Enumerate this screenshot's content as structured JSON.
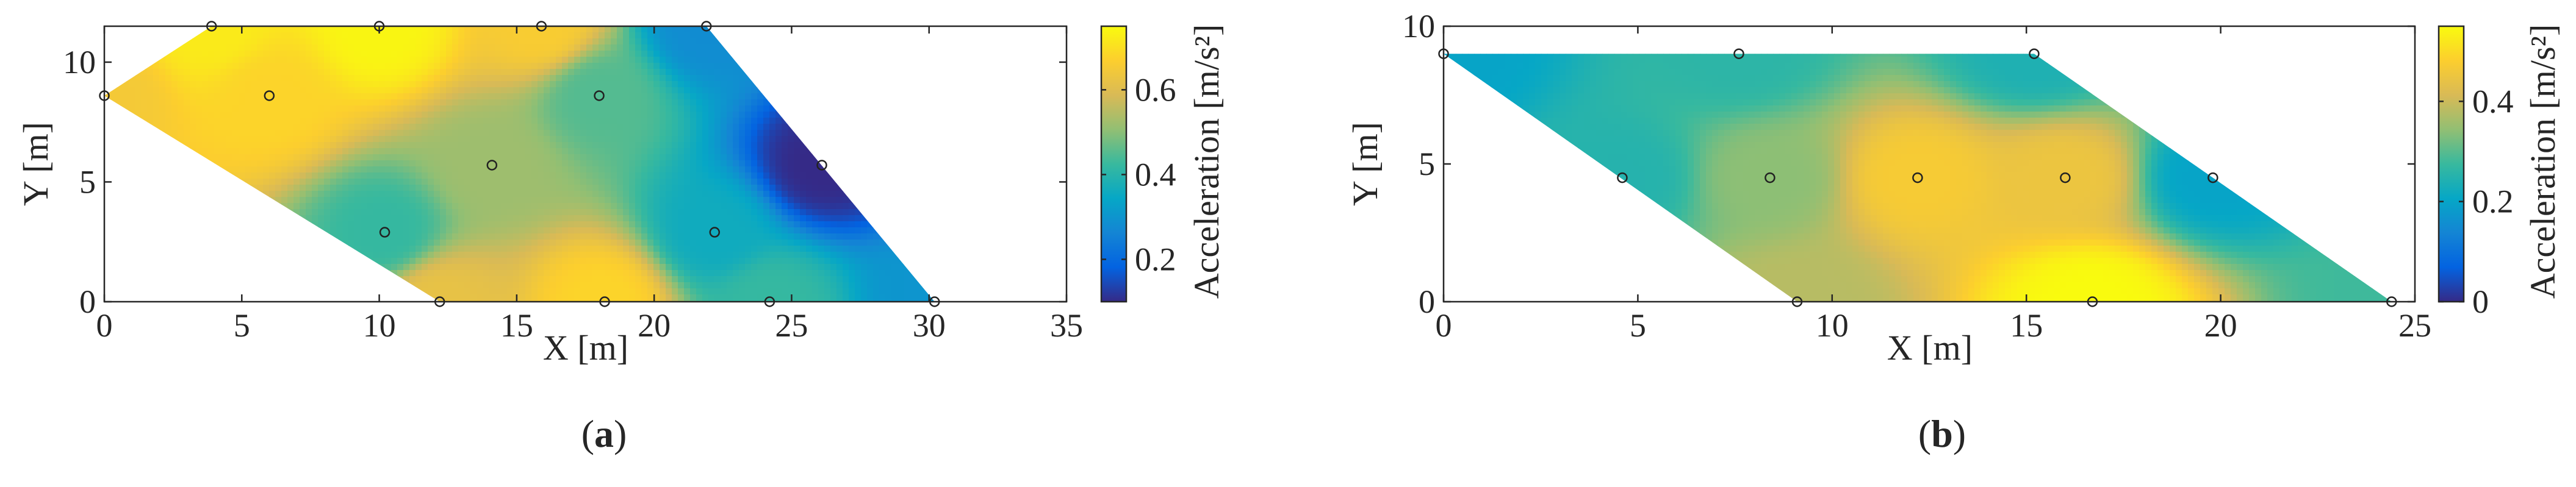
{
  "chart_data": [
    {
      "type": "heatmap",
      "panel_label": "a",
      "xlabel": "X [m]",
      "ylabel": "Y [m]",
      "colorbar_label": "Acceleration [m/s²]",
      "xlim": [
        0,
        35
      ],
      "ylim": [
        0,
        11.5
      ],
      "xticks": [
        0,
        5,
        10,
        15,
        20,
        25,
        30,
        35
      ],
      "yticks": [
        0,
        5,
        10
      ],
      "clim": [
        0.1,
        0.75
      ],
      "cticks": [
        0.2,
        0.4,
        0.6
      ],
      "colormap": "parula",
      "domain_polygon": [
        [
          0,
          8.6
        ],
        [
          3.9,
          11.5
        ],
        [
          21.9,
          11.5
        ],
        [
          30.2,
          0
        ],
        [
          12.2,
          0
        ]
      ],
      "sensors": [
        {
          "x": 3.9,
          "y": 11.5,
          "v": 0.72
        },
        {
          "x": 10.0,
          "y": 11.5,
          "v": 0.74
        },
        {
          "x": 15.9,
          "y": 11.5,
          "v": 0.66
        },
        {
          "x": 21.9,
          "y": 11.5,
          "v": 0.28
        },
        {
          "x": 0,
          "y": 8.6,
          "v": 0.65
        },
        {
          "x": 6.0,
          "y": 8.6,
          "v": 0.68
        },
        {
          "x": 18.0,
          "y": 8.6,
          "v": 0.45
        },
        {
          "x": 14.1,
          "y": 5.7,
          "v": 0.52
        },
        {
          "x": 26.1,
          "y": 5.7,
          "v": 0.1
        },
        {
          "x": 10.2,
          "y": 2.9,
          "v": 0.42
        },
        {
          "x": 22.2,
          "y": 2.9,
          "v": 0.36
        },
        {
          "x": 12.2,
          "y": 0,
          "v": 0.62
        },
        {
          "x": 18.2,
          "y": 0,
          "v": 0.68
        },
        {
          "x": 24.2,
          "y": 0,
          "v": 0.42
        },
        {
          "x": 30.2,
          "y": 0,
          "v": 0.3
        }
      ]
    },
    {
      "type": "heatmap",
      "panel_label": "b",
      "xlabel": "X [m]",
      "ylabel": "Y [m]",
      "colorbar_label": "Acceleration [m/s²]",
      "xlim": [
        0,
        25
      ],
      "ylim": [
        0,
        10
      ],
      "xticks": [
        0,
        5,
        10,
        15,
        20,
        25
      ],
      "yticks": [
        0,
        5,
        10
      ],
      "clim": [
        0,
        0.55
      ],
      "cticks": [
        0,
        0.2,
        0.4
      ],
      "colormap": "parula",
      "domain_polygon": [
        [
          0,
          9.0
        ],
        [
          15.2,
          9.0
        ],
        [
          24.4,
          0
        ],
        [
          9.1,
          0
        ]
      ],
      "sensors": [
        {
          "x": 0,
          "y": 9.0,
          "v": 0.2
        },
        {
          "x": 7.6,
          "y": 9.0,
          "v": 0.26
        },
        {
          "x": 15.2,
          "y": 9.0,
          "v": 0.24
        },
        {
          "x": 4.6,
          "y": 4.5,
          "v": 0.25
        },
        {
          "x": 8.4,
          "y": 4.5,
          "v": 0.34
        },
        {
          "x": 12.2,
          "y": 4.5,
          "v": 0.47
        },
        {
          "x": 16.0,
          "y": 4.5,
          "v": 0.45
        },
        {
          "x": 19.8,
          "y": 4.5,
          "v": 0.2
        },
        {
          "x": 9.1,
          "y": 0,
          "v": 0.38
        },
        {
          "x": 16.7,
          "y": 0,
          "v": 0.55
        },
        {
          "x": 24.4,
          "y": 0,
          "v": 0.28
        }
      ]
    }
  ]
}
